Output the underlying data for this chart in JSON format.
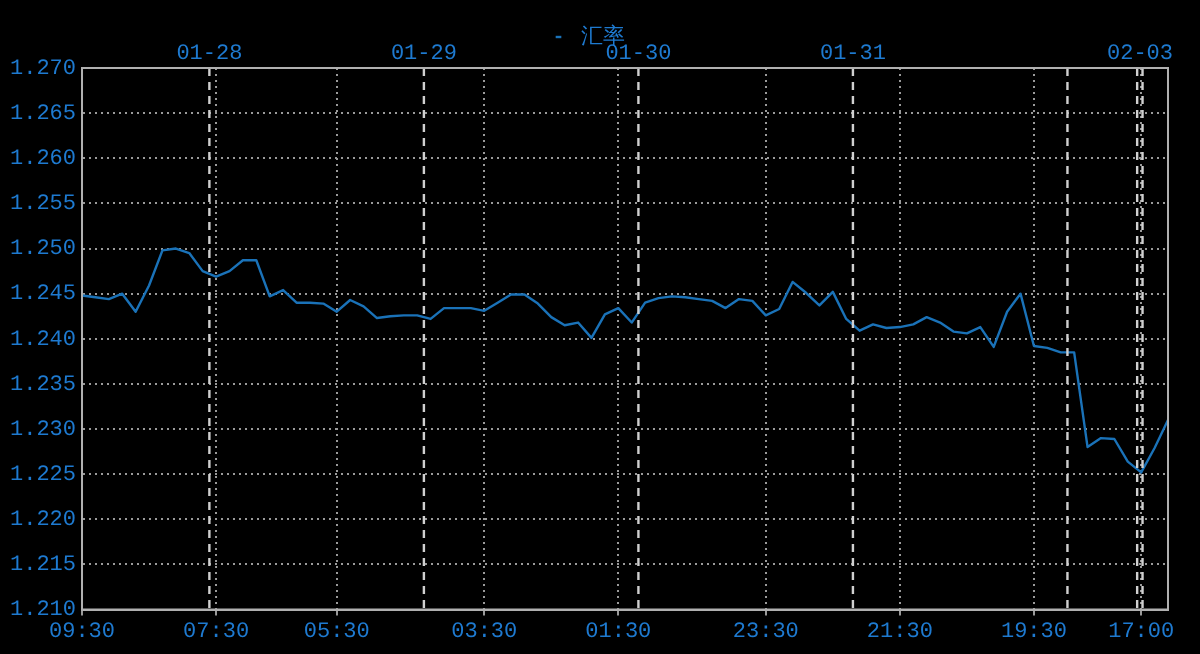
{
  "chart_data": {
    "type": "line",
    "legend": "top",
    "grid": true,
    "marker": "none",
    "line_style": "solid",
    "categories": [
      "09:30",
      null,
      null,
      null,
      null,
      null,
      null,
      null,
      null,
      null,
      "07:30",
      null,
      null,
      null,
      null,
      null,
      null,
      null,
      null,
      "05:30",
      null,
      null,
      null,
      null,
      null,
      null,
      null,
      null,
      null,
      null,
      "03:30",
      null,
      null,
      null,
      null,
      null,
      null,
      null,
      null,
      null,
      "01:30",
      null,
      null,
      null,
      null,
      null,
      null,
      null,
      null,
      null,
      null,
      "23:30",
      null,
      null,
      null,
      null,
      null,
      null,
      null,
      null,
      null,
      "21:30",
      null,
      null,
      null,
      null,
      null,
      null,
      null,
      null,
      null,
      "19:30",
      null,
      null,
      null,
      null,
      null,
      null,
      null,
      "17:00",
      null,
      null
    ],
    "ylim": [
      1.21,
      1.27
    ],
    "yticks": [
      {
        "value": 1.21,
        "label": "1.210"
      },
      {
        "value": 1.215,
        "label": "1.215"
      },
      {
        "value": 1.22,
        "label": "1.220"
      },
      {
        "value": 1.225,
        "label": "1.225"
      },
      {
        "value": 1.23,
        "label": "1.230"
      },
      {
        "value": 1.235,
        "label": "1.235"
      },
      {
        "value": 1.24,
        "label": "1.240"
      },
      {
        "value": 1.245,
        "label": "1.245"
      },
      {
        "value": 1.25,
        "label": "1.250"
      },
      {
        "value": 1.255,
        "label": "1.255"
      },
      {
        "value": 1.26,
        "label": "1.260"
      },
      {
        "value": 1.265,
        "label": "1.265"
      },
      {
        "value": 1.27,
        "label": "1.270"
      }
    ],
    "annotations": [
      "01-28",
      "01-29",
      "01-30",
      "01-31",
      "02-03"
    ],
    "series": [
      {
        "name": "汇率",
        "color": "#1a72b8",
        "values": [
          1.2448,
          1.2446,
          1.2444,
          1.245,
          1.243,
          1.2459,
          1.2498,
          1.25,
          1.2495,
          1.2475,
          1.2469,
          1.2475,
          1.2487,
          1.2487,
          1.2447,
          1.2454,
          1.244,
          1.244,
          1.2439,
          1.243,
          1.2443,
          1.2436,
          1.2423,
          1.2425,
          1.2426,
          1.2426,
          1.2422,
          1.2434,
          1.2434,
          1.2434,
          1.2431,
          1.244,
          1.2449,
          1.2449,
          1.2439,
          1.2424,
          1.2415,
          1.2418,
          1.2401,
          1.2427,
          1.2434,
          1.2418,
          1.244,
          1.2445,
          1.2447,
          1.2446,
          1.2444,
          1.2442,
          1.2434,
          1.2444,
          1.2442,
          1.2426,
          1.2433,
          1.2463,
          1.2451,
          1.2437,
          1.2452,
          1.2422,
          1.2409,
          1.2416,
          1.2412,
          1.2413,
          1.2416,
          1.2424,
          1.2418,
          1.2408,
          1.2406,
          1.2413,
          1.2391,
          1.243,
          1.245,
          1.2392,
          1.239,
          1.2385,
          1.2385,
          1.228,
          1.229,
          1.2289,
          1.2264,
          1.2252,
          1.2279,
          1.231
        ]
      }
    ]
  }
}
